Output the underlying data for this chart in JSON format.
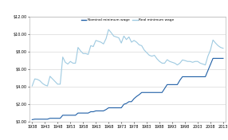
{
  "nominal_wage": {
    "years": [
      1938,
      1939,
      1940,
      1941,
      1942,
      1943,
      1944,
      1945,
      1946,
      1947,
      1948,
      1949,
      1950,
      1951,
      1952,
      1953,
      1954,
      1955,
      1956,
      1957,
      1958,
      1959,
      1960,
      1961,
      1962,
      1963,
      1964,
      1965,
      1966,
      1967,
      1968,
      1969,
      1970,
      1971,
      1972,
      1973,
      1974,
      1975,
      1976,
      1977,
      1978,
      1979,
      1980,
      1981,
      1982,
      1983,
      1984,
      1985,
      1986,
      1987,
      1988,
      1989,
      1990,
      1991,
      1992,
      1993,
      1994,
      1995,
      1996,
      1997,
      1998,
      1999,
      2000,
      2001,
      2002,
      2003,
      2004,
      2005,
      2006,
      2007,
      2008,
      2009,
      2010,
      2011,
      2012,
      2013
    ],
    "values": [
      0.25,
      0.3,
      0.3,
      0.3,
      0.3,
      0.3,
      0.3,
      0.4,
      0.4,
      0.4,
      0.4,
      0.4,
      0.75,
      0.75,
      0.75,
      0.75,
      0.75,
      0.75,
      1.0,
      1.0,
      1.0,
      1.0,
      1.0,
      1.15,
      1.15,
      1.25,
      1.25,
      1.25,
      1.25,
      1.4,
      1.6,
      1.6,
      1.6,
      1.6,
      1.6,
      1.6,
      2.0,
      2.1,
      2.3,
      2.3,
      2.65,
      2.9,
      3.1,
      3.35,
      3.35,
      3.35,
      3.35,
      3.35,
      3.35,
      3.35,
      3.35,
      3.35,
      3.8,
      4.25,
      4.25,
      4.25,
      4.25,
      4.25,
      4.75,
      5.15,
      5.15,
      5.15,
      5.15,
      5.15,
      5.15,
      5.15,
      5.15,
      5.15,
      5.15,
      5.85,
      6.55,
      7.25,
      7.25,
      7.25,
      7.25,
      7.25
    ]
  },
  "real_wage": {
    "years": [
      1938,
      1939,
      1940,
      1941,
      1942,
      1943,
      1944,
      1945,
      1946,
      1947,
      1948,
      1949,
      1950,
      1951,
      1952,
      1953,
      1954,
      1955,
      1956,
      1957,
      1958,
      1959,
      1960,
      1961,
      1962,
      1963,
      1964,
      1965,
      1966,
      1967,
      1968,
      1969,
      1970,
      1971,
      1972,
      1973,
      1974,
      1975,
      1976,
      1977,
      1978,
      1979,
      1980,
      1981,
      1982,
      1983,
      1984,
      1985,
      1986,
      1987,
      1988,
      1989,
      1990,
      1991,
      1992,
      1993,
      1994,
      1995,
      1996,
      1997,
      1998,
      1999,
      2000,
      2001,
      2002,
      2003,
      2004,
      2005,
      2006,
      2007,
      2008,
      2009,
      2010,
      2011,
      2012,
      2013
    ],
    "values": [
      4.1,
      4.9,
      4.85,
      4.7,
      4.4,
      4.2,
      4.1,
      5.2,
      4.9,
      4.6,
      4.3,
      4.3,
      7.4,
      6.8,
      6.6,
      6.9,
      6.7,
      6.7,
      8.5,
      8.1,
      7.8,
      7.8,
      7.7,
      8.7,
      8.6,
      9.3,
      9.2,
      9.1,
      8.9,
      9.5,
      10.55,
      10.2,
      9.8,
      9.7,
      9.6,
      9.0,
      9.8,
      9.4,
      9.7,
      9.1,
      9.3,
      9.1,
      8.8,
      8.7,
      8.2,
      7.9,
      7.6,
      7.5,
      7.6,
      7.2,
      6.9,
      6.7,
      6.7,
      7.1,
      6.9,
      6.8,
      6.7,
      6.5,
      6.7,
      7.07,
      7.0,
      6.9,
      6.9,
      6.8,
      6.9,
      6.9,
      6.7,
      6.6,
      6.5,
      7.5,
      8.2,
      9.35,
      9.0,
      8.7,
      8.5,
      8.4
    ]
  },
  "nominal_color": "#1f5fa6",
  "real_color": "#9ecae1",
  "ylim": [
    0,
    12
  ],
  "yticks": [
    0,
    2,
    4,
    6,
    8,
    10,
    12
  ],
  "ytick_labels": [
    "$0.00",
    "$2.00",
    "$4.00",
    "$6.00",
    "$8.00",
    "$10.00",
    "$12.00"
  ],
  "xlim": [
    1937,
    2014
  ],
  "xticks": [
    1938,
    1943,
    1948,
    1953,
    1958,
    1963,
    1968,
    1973,
    1978,
    1983,
    1988,
    1993,
    1998,
    2003,
    2008,
    2013
  ],
  "legend_nominal": "Nominal minimum wage",
  "legend_real": "Real minimum wage",
  "background_color": "#ffffff",
  "grid_color": "#d0d0d0"
}
